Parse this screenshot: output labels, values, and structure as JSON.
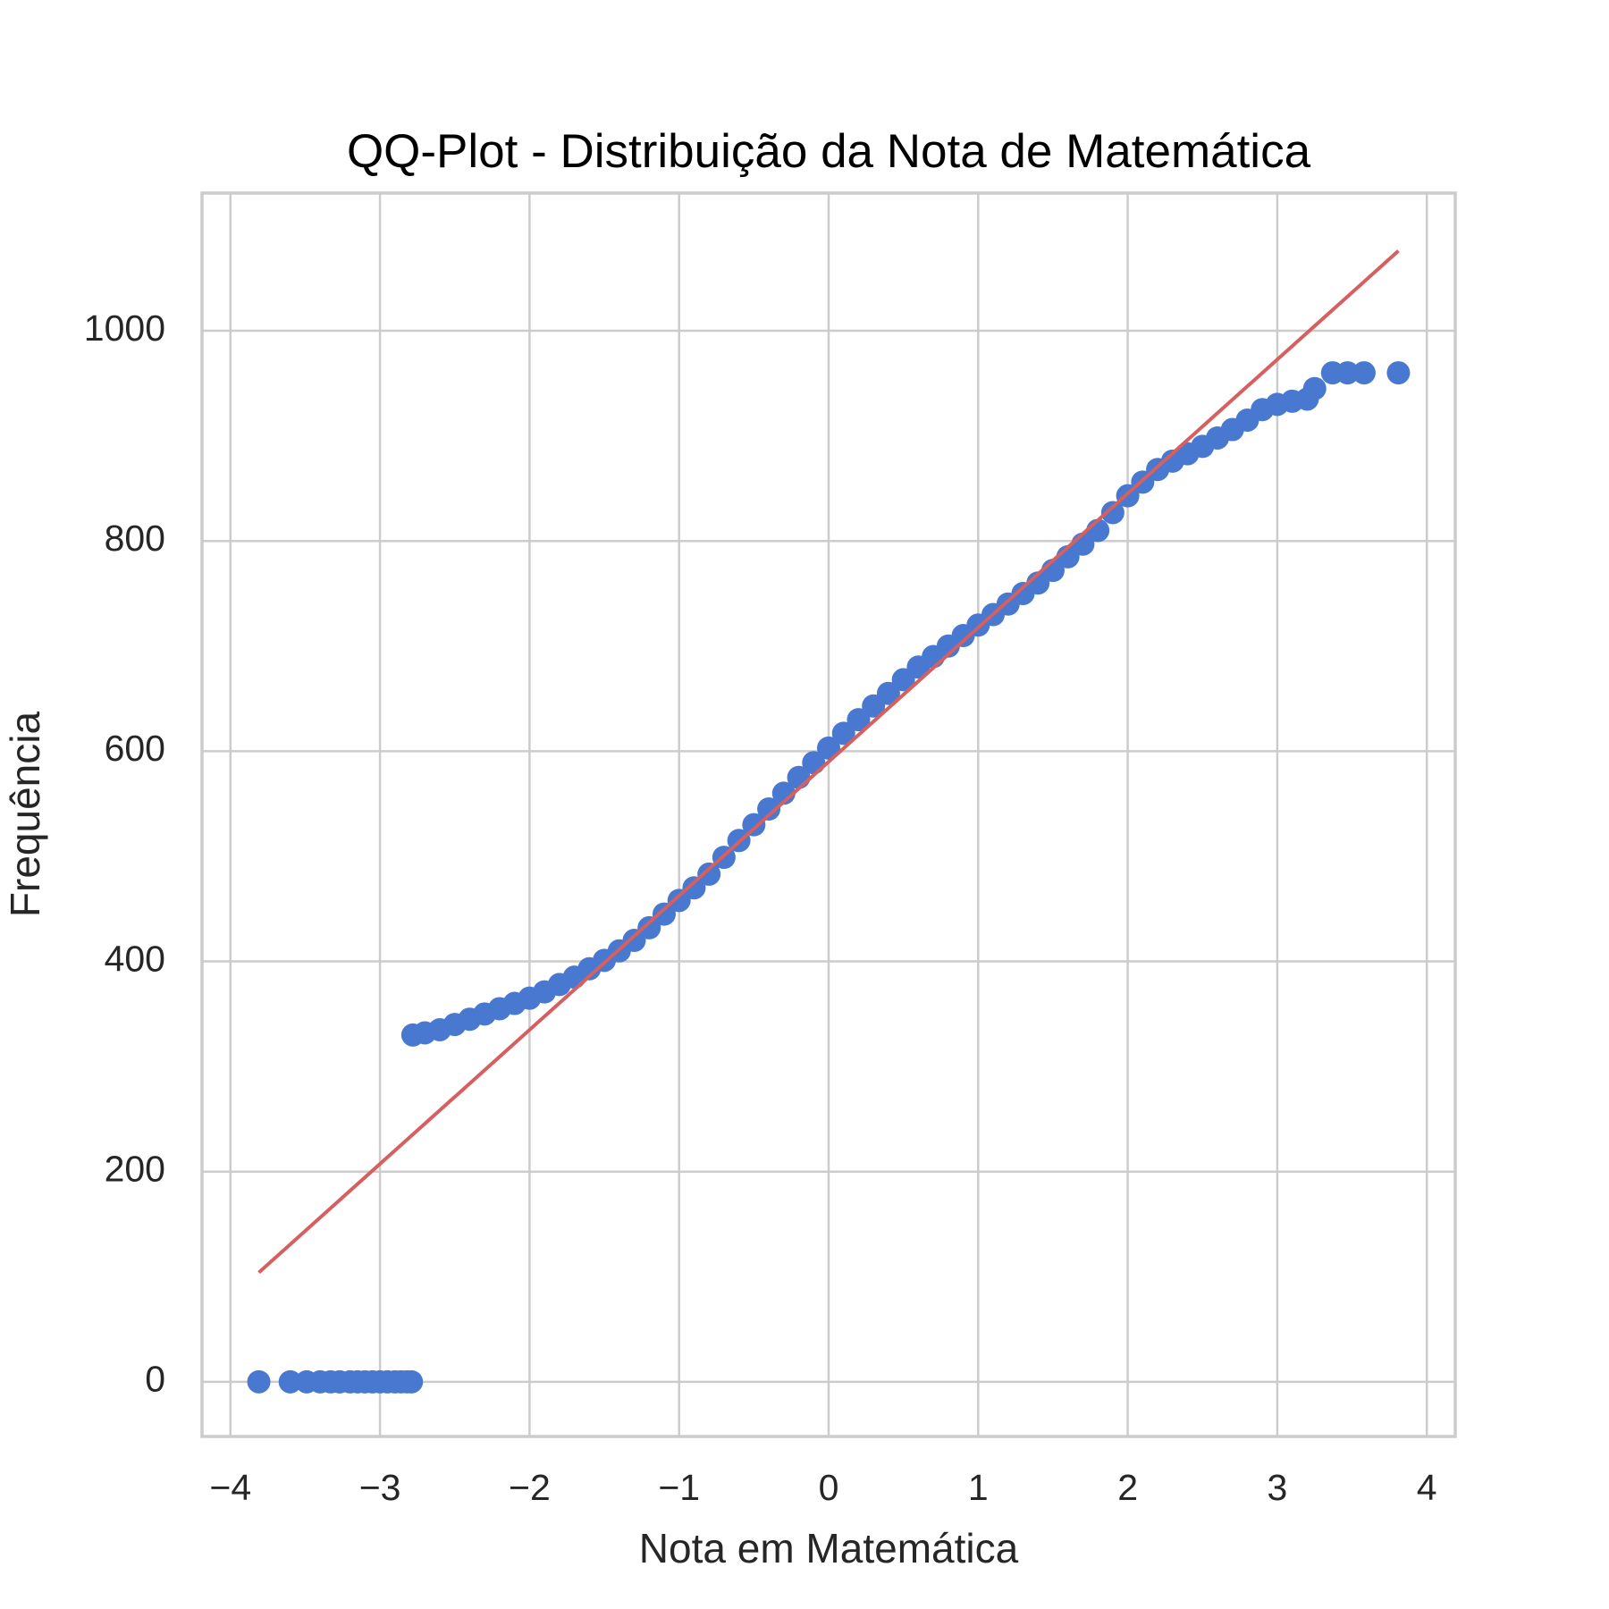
{
  "chart_data": {
    "type": "scatter",
    "title": "QQ-Plot - Distribuição da Nota de Matemática",
    "xlabel": "Nota em Matemática",
    "ylabel": "Frequência",
    "xlim": [
      -4.19,
      4.19
    ],
    "ylim": [
      -52,
      1131
    ],
    "xticks": [
      {
        "value": -4,
        "label": "−4"
      },
      {
        "value": -3,
        "label": "−3"
      },
      {
        "value": -2,
        "label": "−2"
      },
      {
        "value": -1,
        "label": "−1"
      },
      0,
      1,
      2,
      3,
      4
    ],
    "yticks": [
      0,
      200,
      400,
      600,
      800,
      1000
    ],
    "grid": true,
    "series": [
      {
        "type": "scatter",
        "color": "#4878d0",
        "x": [
          -3.81,
          -3.6,
          -3.49,
          -3.4,
          -3.33,
          -3.27,
          -3.2,
          -3.15,
          -3.1,
          -3.05,
          -3.0,
          -2.95,
          -2.9,
          -2.86,
          -2.82,
          -2.79,
          -2.78,
          -2.7,
          -2.6,
          -2.5,
          -2.4,
          -2.3,
          -2.2,
          -2.1,
          -2.0,
          -1.9,
          -1.8,
          -1.7,
          -1.6,
          -1.5,
          -1.4,
          -1.3,
          -1.2,
          -1.1,
          -1.0,
          -0.9,
          -0.8,
          -0.7,
          -0.6,
          -0.5,
          -0.4,
          -0.3,
          -0.2,
          -0.1,
          0,
          0.1,
          0.2,
          0.3,
          0.4,
          0.5,
          0.6,
          0.7,
          0.8,
          0.9,
          1.0,
          1.1,
          1.2,
          1.3,
          1.4,
          1.5,
          1.6,
          1.7,
          1.8,
          1.9,
          2.0,
          2.1,
          2.2,
          2.3,
          2.4,
          2.5,
          2.6,
          2.7,
          2.8,
          2.9,
          3.0,
          3.1,
          3.2,
          3.25,
          3.37,
          3.47,
          3.58,
          3.81
        ],
        "values": [
          0,
          0,
          0,
          0,
          0,
          0,
          0,
          0,
          0,
          0,
          0,
          0,
          0,
          0,
          0,
          0,
          330,
          332,
          335,
          340,
          345,
          350,
          355,
          360,
          365,
          371,
          378,
          385,
          393,
          401,
          410,
          420,
          432,
          445,
          458,
          470,
          483,
          499,
          515,
          530,
          545,
          560,
          575,
          589,
          603,
          617,
          630,
          643,
          655,
          668,
          680,
          690,
          700,
          710,
          720,
          730,
          740,
          750,
          760,
          772,
          785,
          797,
          810,
          827,
          843,
          856,
          868,
          876,
          883,
          890,
          898,
          906,
          915,
          925,
          930,
          933,
          935,
          945,
          960,
          960,
          960,
          960
        ]
      },
      {
        "type": "line",
        "color": "#d65f5f",
        "x": [
          -3.81,
          3.81
        ],
        "values": [
          104,
          1076
        ]
      }
    ]
  }
}
